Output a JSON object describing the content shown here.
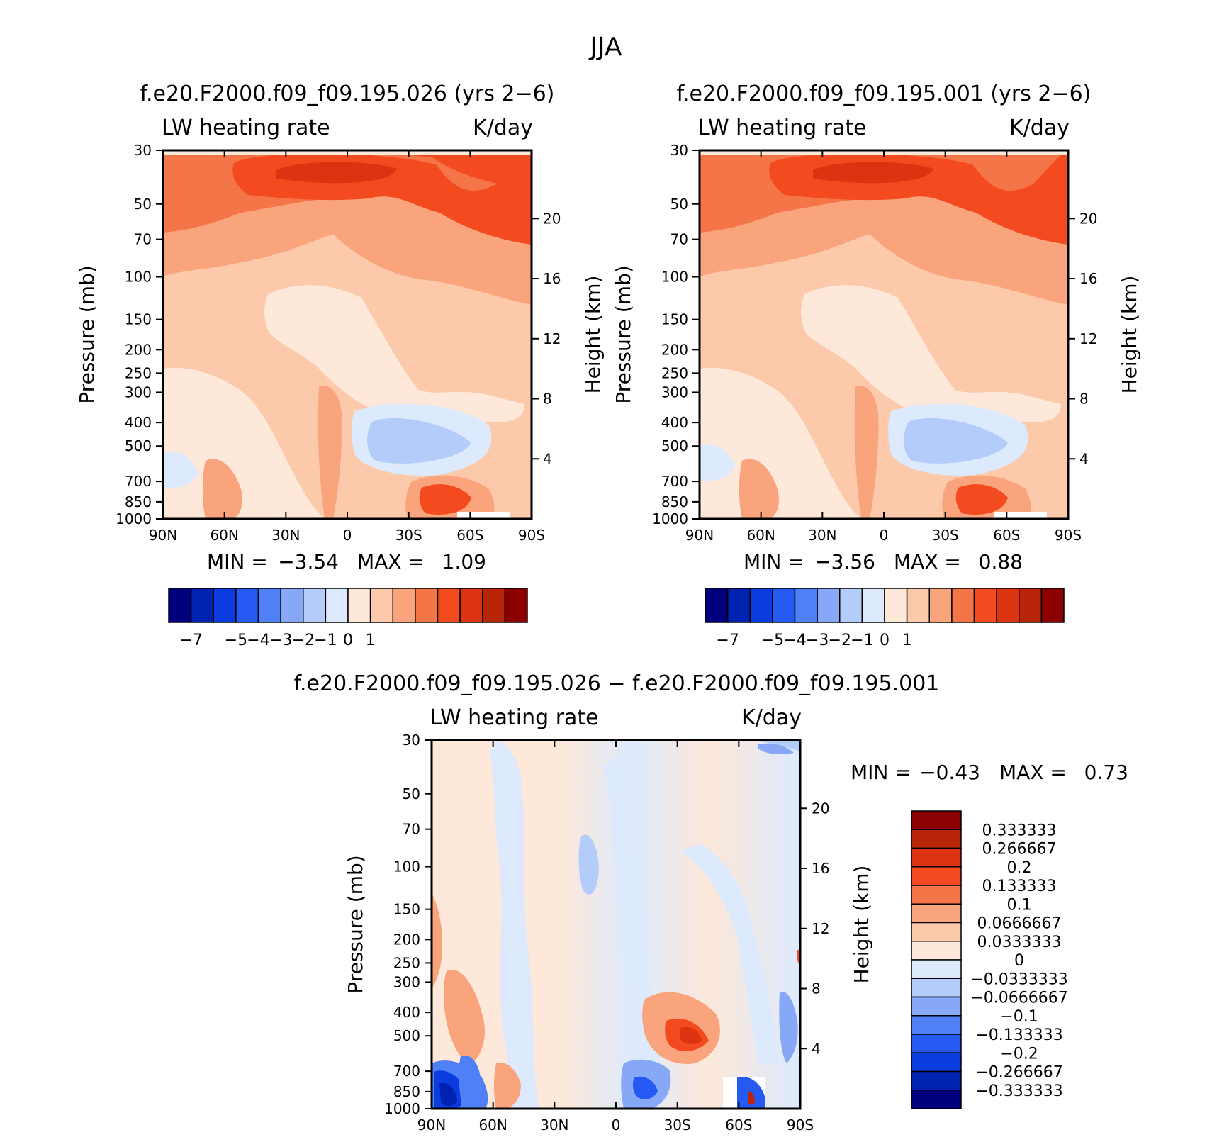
{
  "figure": {
    "title": "JJA",
    "diff_title": "f.e20.F2000.f09_f09.195.026 − f.e20.F2000.f09_f09.195.001"
  },
  "chart_data": [
    {
      "type": "heatmap",
      "id": "p1",
      "title": "f.e20.F2000.f09_f09.195.026 (yrs 2−6)",
      "left_label": "LW heating rate",
      "right_label": "K/day",
      "xlabel": "",
      "ylabel": "Pressure (mb)",
      "ylabel_right": "Height (km)",
      "x_ticks": [
        "90N",
        "60N",
        "30N",
        "0",
        "30S",
        "60S",
        "90S"
      ],
      "y_ticks": [
        "30",
        "50",
        "70",
        "100",
        "150",
        "200",
        "250",
        "300",
        "400",
        "500",
        "700",
        "850",
        "1000"
      ],
      "height_ticks": [
        "20",
        "16",
        "12",
        "8",
        "4"
      ],
      "height_values_km": [
        20,
        16,
        12,
        8,
        4
      ],
      "stats": {
        "min_label": "MIN =",
        "min": "−3.54",
        "max_label": "MAX =",
        "max": "1.09"
      },
      "colorbar_ticks": [
        "−7",
        "−5",
        "−4",
        "−3",
        "−2",
        "−1",
        "0",
        "1"
      ],
      "colorbar_colors": [
        "#00007f",
        "#0022b0",
        "#0a3ce0",
        "#2459f2",
        "#4f80f5",
        "#86a8f7",
        "#b4ccfa",
        "#ddeafd",
        "#fde8da",
        "#fcc9aa",
        "#f9a47d",
        "#f47548",
        "#f34a1f",
        "#dc3410",
        "#b82508",
        "#8b0000"
      ]
    },
    {
      "type": "heatmap",
      "id": "p2",
      "title": "f.e20.F2000.f09_f09.195.001 (yrs 2−6)",
      "left_label": "LW heating rate",
      "right_label": "K/day",
      "xlabel": "",
      "ylabel": "Pressure (mb)",
      "ylabel_right": "Height (km)",
      "x_ticks": [
        "90N",
        "60N",
        "30N",
        "0",
        "30S",
        "60S",
        "90S"
      ],
      "y_ticks": [
        "30",
        "50",
        "70",
        "100",
        "150",
        "200",
        "250",
        "300",
        "400",
        "500",
        "700",
        "850",
        "1000"
      ],
      "height_ticks": [
        "20",
        "16",
        "12",
        "8",
        "4"
      ],
      "height_values_km": [
        20,
        16,
        12,
        8,
        4
      ],
      "stats": {
        "min_label": "MIN =",
        "min": "−3.56",
        "max_label": "MAX =",
        "max": "0.88"
      },
      "colorbar_ticks": [
        "−7",
        "−5",
        "−4",
        "−3",
        "−2",
        "−1",
        "0",
        "1"
      ],
      "colorbar_colors": [
        "#00007f",
        "#0022b0",
        "#0a3ce0",
        "#2459f2",
        "#4f80f5",
        "#86a8f7",
        "#b4ccfa",
        "#ddeafd",
        "#fde8da",
        "#fcc9aa",
        "#f9a47d",
        "#f47548",
        "#f34a1f",
        "#dc3410",
        "#b82508",
        "#8b0000"
      ]
    },
    {
      "type": "heatmap",
      "id": "p3",
      "title": "",
      "left_label": "LW heating rate",
      "right_label": "K/day",
      "xlabel": "",
      "ylabel": "Pressure (mb)",
      "ylabel_right": "Height (km)",
      "x_ticks": [
        "90N",
        "60N",
        "30N",
        "0",
        "30S",
        "60S",
        "90S"
      ],
      "y_ticks": [
        "30",
        "50",
        "70",
        "100",
        "150",
        "200",
        "250",
        "300",
        "400",
        "500",
        "700",
        "850",
        "1000"
      ],
      "height_ticks": [
        "20",
        "16",
        "12",
        "8",
        "4"
      ],
      "height_values_km": [
        20,
        16,
        12,
        8,
        4
      ],
      "stats": {
        "min_label": "MIN =",
        "min": "−0.43",
        "max_label": "MAX =",
        "max": "0.73"
      },
      "colorbar_ticks": [
        "0.333333",
        "0.266667",
        "0.2",
        "0.133333",
        "0.1",
        "0.0666667",
        "0.0333333",
        "0",
        "−0.0333333",
        "−0.0666667",
        "−0.1",
        "−0.133333",
        "−0.2",
        "−0.266667",
        "−0.333333"
      ],
      "colorbar_colors": [
        "#8b0000",
        "#b82508",
        "#dc3410",
        "#f34a1f",
        "#f47548",
        "#f9a47d",
        "#fcc9aa",
        "#fde8da",
        "#ddeafd",
        "#b4ccfa",
        "#86a8f7",
        "#4f80f5",
        "#2459f2",
        "#0a3ce0",
        "#0022b0",
        "#00007f"
      ]
    }
  ]
}
